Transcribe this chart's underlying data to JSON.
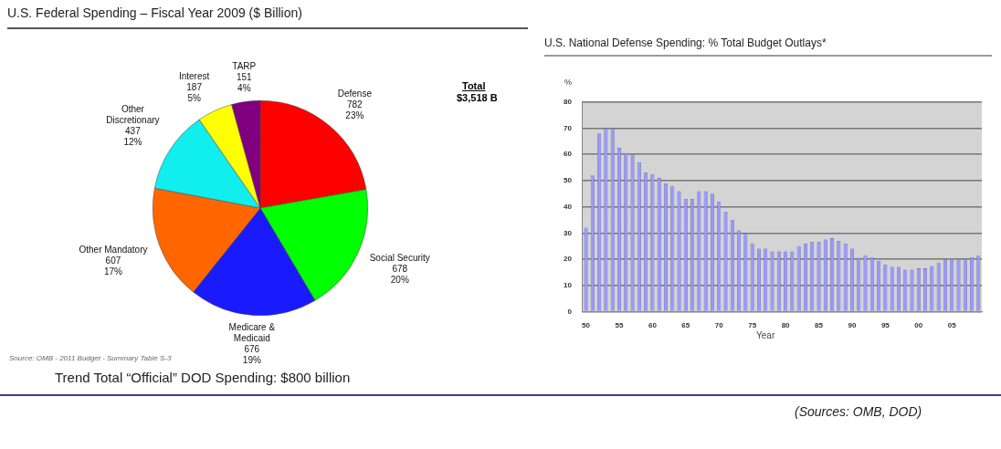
{
  "chart_data": [
    {
      "type": "pie",
      "title": "U.S. Federal Spending – Fiscal Year 2009 ($ Billion)",
      "categories": [
        "Defense",
        "Social Security",
        "Medicare & Medicaid",
        "Other Mandatory",
        "Other Discretionary",
        "Interest",
        "TARP"
      ],
      "values": [
        782,
        678,
        676,
        607,
        437,
        187,
        151
      ],
      "colors": [
        "#ff0000",
        "#00ff00",
        "#1a1aff",
        "#ff6600",
        "#11eeee",
        "#ffff00",
        "#800080"
      ],
      "value_labels": [
        "782 23%",
        "678 20%",
        "676 19%",
        "607 17%",
        "437 12%",
        "187 5%",
        "151 4%"
      ],
      "annotations": [
        "Total",
        "$3,518 B",
        "Source:  OMB - 2011 Budget - Summary Table S-3",
        "Trend Total “Official” DOD Spending: $800 billion",
        "(Sources: OMB, DOD)"
      ]
    },
    {
      "type": "bar",
      "title": "U.S. National Defense Spending: % Total Budget Outlays*",
      "ylabel": "%",
      "xlabel": "Year",
      "categories": [
        "50",
        null,
        null,
        null,
        null,
        "55",
        null,
        null,
        null,
        null,
        "60",
        null,
        null,
        null,
        null,
        "65",
        null,
        null,
        null,
        null,
        "70",
        null,
        null,
        null,
        null,
        "75",
        null,
        null,
        null,
        null,
        "80",
        null,
        null,
        null,
        null,
        "85",
        null,
        null,
        null,
        null,
        "90",
        null,
        null,
        null,
        null,
        "95",
        null,
        null,
        null,
        null,
        "00",
        null,
        null,
        null,
        null,
        "05",
        null,
        null,
        null,
        null
      ],
      "values": [
        32,
        52,
        68,
        70,
        70,
        62.5,
        60.5,
        60,
        57,
        53,
        52.5,
        51,
        49,
        48,
        46,
        43,
        43,
        46,
        46,
        45,
        42,
        38,
        35,
        31,
        30,
        26,
        24,
        24,
        23,
        23,
        23,
        23,
        25,
        26,
        26.5,
        26.5,
        27.5,
        28,
        27,
        26,
        24,
        20.5,
        21.5,
        20.7,
        19.4,
        17.8,
        17,
        17,
        16,
        16,
        16.5,
        16.5,
        17.4,
        18.7,
        20,
        20,
        20,
        20,
        20.7,
        21.5
      ],
      "color": "#9999ff",
      "ylim": [
        0,
        80
      ],
      "yticks": [
        0,
        10,
        20,
        30,
        40,
        50,
        60,
        70,
        80
      ],
      "grid": true
    }
  ]
}
